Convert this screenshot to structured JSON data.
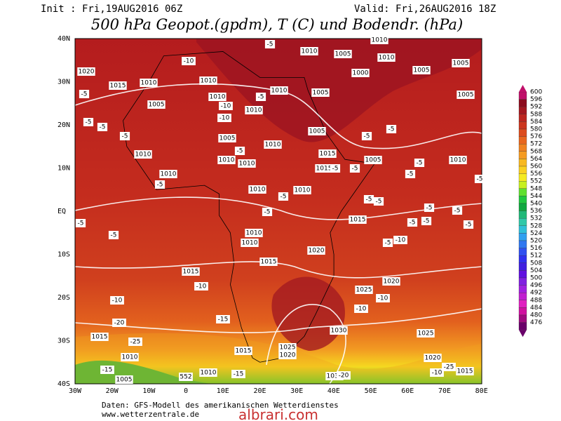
{
  "header": {
    "init": "Init : Fri,19AUG2016 06Z",
    "valid": "Valid: Fri,26AUG2016 18Z",
    "title": "500 hPa Geopot.(gpdm), T (C) und Bodendr. (hPa)"
  },
  "lat_labels": [
    "40N",
    "30N",
    "20N",
    "10N",
    "EQ",
    "10S",
    "20S",
    "30S",
    "40S"
  ],
  "lon_labels": [
    "30W",
    "20W",
    "10W",
    "0",
    "10E",
    "20E",
    "30E",
    "40E",
    "50E",
    "60E",
    "70E",
    "80E"
  ],
  "contour_labels": [
    "1010",
    "1005",
    "1010",
    "1010",
    "1005",
    "1000",
    "1005",
    "1015",
    "1010",
    "1010",
    "1010",
    "1005",
    "1005",
    "1020",
    "1010",
    "1005",
    "1010",
    "1005",
    "1005",
    "1010",
    "1015",
    "1015",
    "1005",
    "1010",
    "1010",
    "1010",
    "1010",
    "1010",
    "1010",
    "1010",
    "1015",
    "1010",
    "1010",
    "1020",
    "1015",
    "1015",
    "1020",
    "1025",
    "1030",
    "1025",
    "1015",
    "1025",
    "1020",
    "1010",
    "1030",
    "1020",
    "1015",
    "1010",
    "1005",
    "1015",
    "552",
    "-5",
    "-10",
    "-5",
    "-5",
    "-5",
    "-5",
    "-10",
    "-5",
    "-10",
    "-5",
    "-5",
    "-5",
    "-5",
    "-5",
    "-5",
    "-5",
    "-5",
    "-5",
    "-5",
    "-5",
    "-5",
    "-5",
    "-5",
    "-5",
    "-5",
    "-5",
    "-5",
    "-5",
    "-5",
    "-5",
    "-10",
    "-10",
    "-10",
    "-10",
    "-10",
    "-15",
    "-20",
    "-25",
    "-15",
    "-15",
    "-20",
    "-25",
    "-10"
  ],
  "colorbar": {
    "levels": [
      600,
      596,
      592,
      588,
      584,
      580,
      576,
      572,
      568,
      564,
      560,
      556,
      552,
      548,
      544,
      540,
      536,
      532,
      528,
      524,
      520,
      516,
      512,
      508,
      504,
      500,
      496,
      492,
      488,
      484,
      480,
      476
    ],
    "colors": [
      "#c0106a",
      "#8c0c1e",
      "#a41820",
      "#bc2620",
      "#cc361e",
      "#dc4c1e",
      "#e8661e",
      "#f08220",
      "#f59c22",
      "#f8b820",
      "#fad020",
      "#f5ea20",
      "#c8f020",
      "#60e030",
      "#20c840",
      "#10a840",
      "#20b878",
      "#30c8a8",
      "#30c0d8",
      "#30a0f0",
      "#3078f0",
      "#3050f0",
      "#3030f0",
      "#4020e0",
      "#6010e0",
      "#8020e0",
      "#a020e0",
      "#c020d0",
      "#e020c0",
      "#d010a0",
      "#a00a80",
      "#6a006a"
    ]
  },
  "footer": {
    "source": "Daten: GFS-Modell des amerikanischen Wetterdienstes",
    "site": "www.wetterzentrale.de",
    "watermark": "albrari.com"
  }
}
